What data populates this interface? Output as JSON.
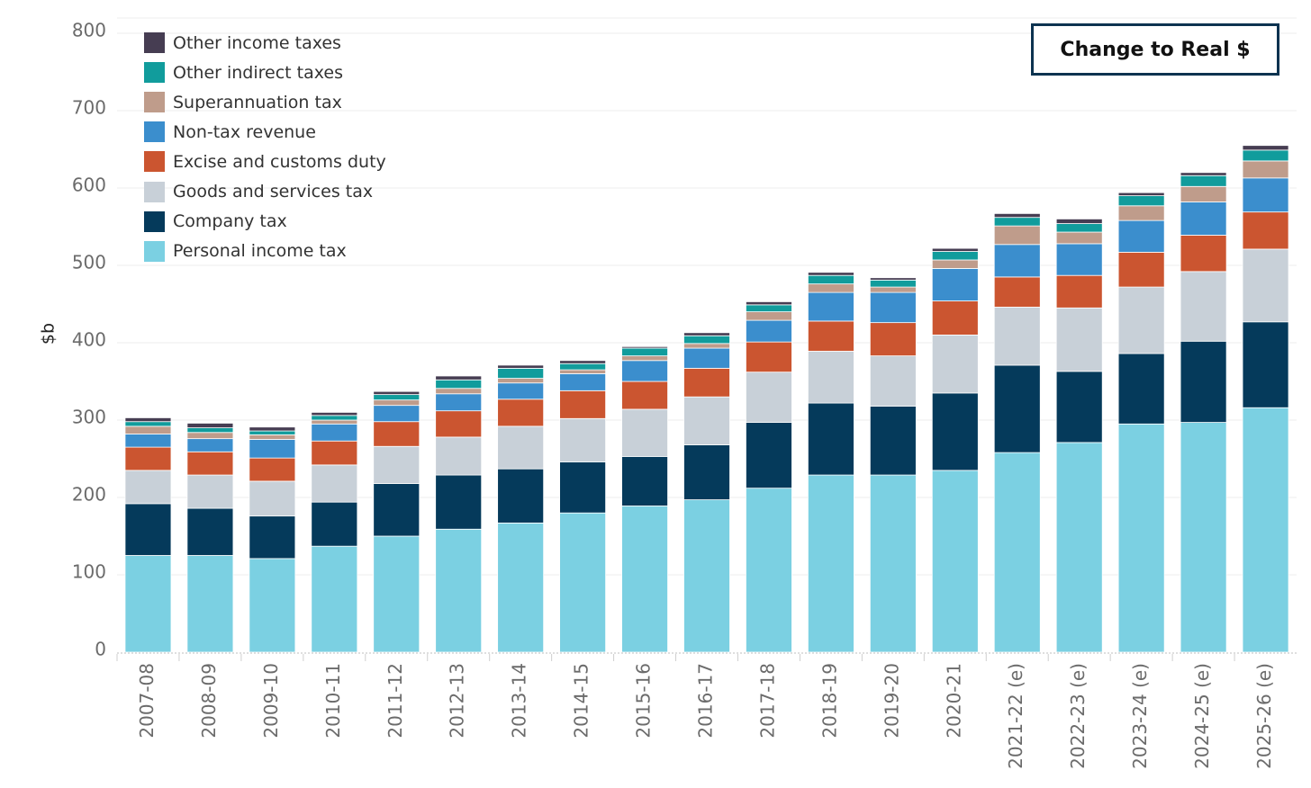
{
  "toggle_button": {
    "label": "Change to Real $"
  },
  "chart_data": {
    "type": "bar",
    "stacked": true,
    "ylabel": "$b",
    "ylim": [
      0,
      800
    ],
    "yticks": [
      0,
      100,
      200,
      300,
      400,
      500,
      600,
      700,
      800
    ],
    "grid": true,
    "legend_position": "top-left",
    "categories": [
      "2007-08",
      "2008-09",
      "2009-10",
      "2010-11",
      "2011-12",
      "2012-13",
      "2013-14",
      "2014-15",
      "2015-16",
      "2016-17",
      "2017-18",
      "2018-19",
      "2019-20",
      "2020-21",
      "2021-22 (e)",
      "2022-23 (e)",
      "2023-24 (e)",
      "2024-25 (e)",
      "2025-26 (e)"
    ],
    "series": [
      {
        "name": "Personal income tax",
        "color": "#7bd0e2",
        "values": [
          125,
          125,
          121,
          137,
          150,
          159,
          167,
          180,
          189,
          197,
          212,
          229,
          229,
          235,
          258,
          271,
          295,
          297,
          316
        ]
      },
      {
        "name": "Company tax",
        "color": "#053a5b",
        "values": [
          67,
          61,
          55,
          57,
          68,
          70,
          70,
          66,
          64,
          71,
          85,
          93,
          89,
          100,
          113,
          92,
          91,
          105,
          111
        ]
      },
      {
        "name": "Goods and services tax",
        "color": "#c8d0d8",
        "values": [
          43,
          43,
          45,
          48,
          48,
          49,
          55,
          56,
          61,
          62,
          65,
          67,
          65,
          75,
          75,
          82,
          86,
          90,
          94
        ]
      },
      {
        "name": "Excise and customs duty",
        "color": "#cb5530",
        "values": [
          30,
          30,
          30,
          31,
          32,
          34,
          35,
          36,
          36,
          37,
          39,
          39,
          43,
          44,
          39,
          42,
          45,
          47,
          48
        ]
      },
      {
        "name": "Non-tax revenue",
        "color": "#3b8ecd",
        "values": [
          17,
          17,
          24,
          22,
          21,
          22,
          21,
          22,
          27,
          26,
          28,
          37,
          39,
          42,
          42,
          41,
          41,
          43,
          44
        ]
      },
      {
        "name": "Superannuation tax",
        "color": "#bf9c8b",
        "values": [
          10,
          8,
          6,
          5,
          7,
          7,
          6,
          5,
          6,
          6,
          11,
          11,
          7,
          11,
          24,
          15,
          19,
          20,
          22
        ]
      },
      {
        "name": "Other indirect taxes",
        "color": "#119c9c",
        "values": [
          6,
          6,
          5,
          6,
          7,
          11,
          13,
          8,
          10,
          10,
          9,
          11,
          9,
          11,
          11,
          11,
          13,
          14,
          14
        ]
      },
      {
        "name": "Other income taxes",
        "color": "#463d52",
        "values": [
          5,
          6,
          5,
          4,
          4,
          5,
          4,
          4,
          2,
          4,
          4,
          4,
          3,
          4,
          5,
          6,
          4,
          4,
          6
        ]
      }
    ]
  }
}
